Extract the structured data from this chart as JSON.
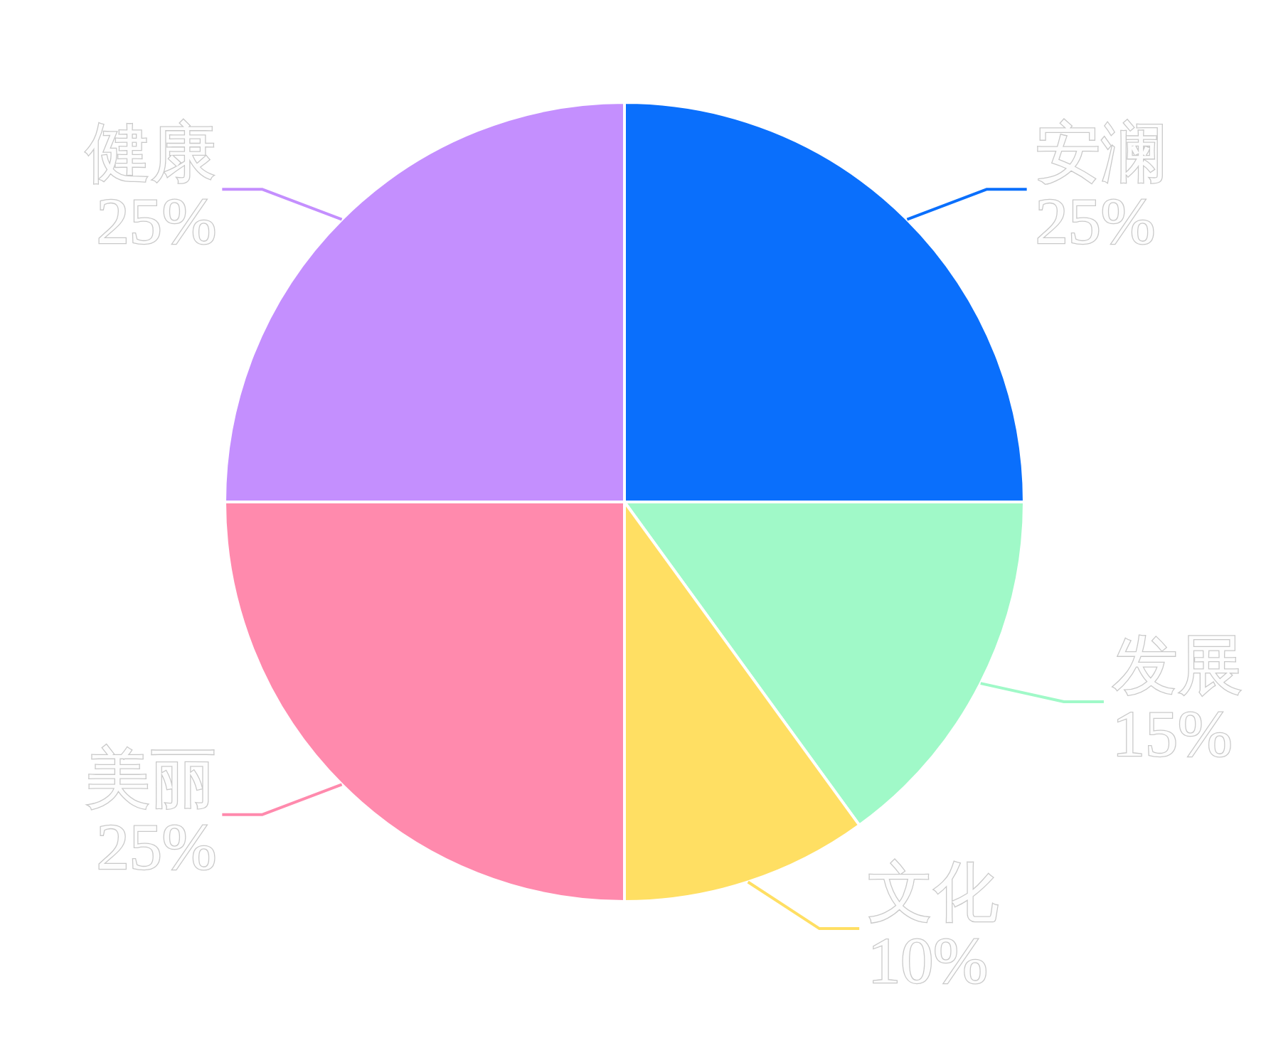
{
  "chart_data": {
    "type": "pie",
    "categories": [
      "安澜",
      "发展",
      "文化",
      "美丽",
      "健康"
    ],
    "values": [
      25,
      15,
      10,
      25,
      25
    ],
    "colors": [
      "#0a6ffc",
      "#a0f9c8",
      "#ffdf63",
      "#ff8aad",
      "#c48ffe"
    ],
    "value_labels": [
      "25%",
      "15%",
      "10%",
      "25%",
      "25%"
    ]
  }
}
